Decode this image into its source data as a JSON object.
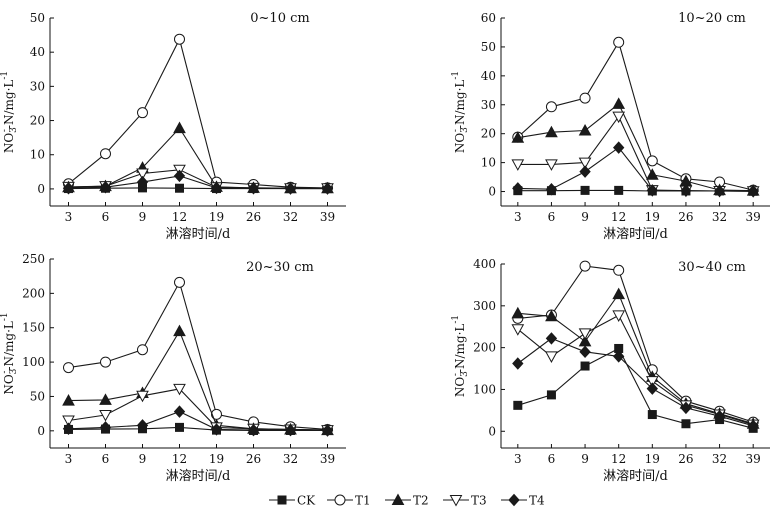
{
  "figure": {
    "legend": [
      {
        "label": "CK",
        "marker": "square-filled"
      },
      {
        "label": "T1",
        "marker": "circle-open"
      },
      {
        "label": "T2",
        "marker": "triangle-up-filled"
      },
      {
        "label": "T3",
        "marker": "triangle-down-open"
      },
      {
        "label": "T4",
        "marker": "diamond-filled"
      }
    ],
    "ylabel_parts": {
      "prefix": "NO",
      "sub": "3",
      "sup": "-",
      "mid": "-N/mg·L",
      "exp": "-1"
    },
    "xlabel": "淋溶时间/d",
    "line_color": "#1a1a1a",
    "legend_position": "bottom-center"
  },
  "chart_data": [
    {
      "type": "line",
      "title": "0~10 cm",
      "xlabel": "淋溶时间/d",
      "ylabel": "NO3--N/mg·L-1",
      "categories": [
        "3",
        "6",
        "9",
        "12",
        "19",
        "26",
        "32",
        "39"
      ],
      "ylim": [
        -5,
        50
      ],
      "yticks": [
        0,
        10,
        20,
        30,
        40,
        50
      ],
      "grid": false,
      "series": [
        {
          "name": "CK",
          "values": [
            0.1,
            0.2,
            0.3,
            0.2,
            0.1,
            0.1,
            0.1,
            0.1
          ]
        },
        {
          "name": "T1",
          "values": [
            1.5,
            10.3,
            22.3,
            43.8,
            2.0,
            1.3,
            0.5,
            0.3
          ]
        },
        {
          "name": "T2",
          "values": [
            0.5,
            0.8,
            6.2,
            17.8,
            0.6,
            0.3,
            0.2,
            0.2
          ]
        },
        {
          "name": "T3",
          "values": [
            0.6,
            0.8,
            4.5,
            5.6,
            0.5,
            0.3,
            0.2,
            0.2
          ]
        },
        {
          "name": "T4",
          "values": [
            0.2,
            0.5,
            2.0,
            3.8,
            0.3,
            0.2,
            0.1,
            0.1
          ]
        }
      ]
    },
    {
      "type": "line",
      "title": "10~20 cm",
      "xlabel": "淋溶时间/d",
      "ylabel": "NO3--N/mg·L-1",
      "categories": [
        "3",
        "6",
        "9",
        "12",
        "19",
        "26",
        "32",
        "39"
      ],
      "ylim": [
        -5,
        60
      ],
      "yticks": [
        0,
        10,
        20,
        30,
        40,
        50,
        60
      ],
      "grid": false,
      "series": [
        {
          "name": "CK",
          "values": [
            0.3,
            0.3,
            0.4,
            0.4,
            0.2,
            0.2,
            0.2,
            0.1
          ]
        },
        {
          "name": "T1",
          "values": [
            18.8,
            29.3,
            32.3,
            51.6,
            10.6,
            4.4,
            3.3,
            0.5
          ]
        },
        {
          "name": "T2",
          "values": [
            18.6,
            20.5,
            21.1,
            30.3,
            5.8,
            3.6,
            0.5,
            0.3
          ]
        },
        {
          "name": "T3",
          "values": [
            9.4,
            9.4,
            10.0,
            25.9,
            0.5,
            0.3,
            0.2,
            0.1
          ]
        },
        {
          "name": "T4",
          "values": [
            1.1,
            0.8,
            6.9,
            15.2,
            0.4,
            0.3,
            0.2,
            0.1
          ]
        }
      ]
    },
    {
      "type": "line",
      "title": "20~30 cm",
      "xlabel": "淋溶时间/d",
      "ylabel": "NO3--N/mg·L-1",
      "categories": [
        "3",
        "6",
        "9",
        "12",
        "19",
        "26",
        "32",
        "39"
      ],
      "ylim": [
        -25,
        250
      ],
      "yticks": [
        0,
        50,
        100,
        150,
        200,
        250
      ],
      "grid": false,
      "series": [
        {
          "name": "CK",
          "values": [
            2.0,
            2.5,
            3.0,
            5.0,
            1.0,
            0.5,
            0.5,
            0.5
          ]
        },
        {
          "name": "T1",
          "values": [
            92,
            100,
            118,
            216,
            24,
            13,
            6,
            2
          ]
        },
        {
          "name": "T2",
          "values": [
            44,
            45,
            55,
            145,
            8,
            3,
            2,
            1
          ]
        },
        {
          "name": "T3",
          "values": [
            15,
            23,
            51,
            61,
            5,
            3,
            2,
            1
          ]
        },
        {
          "name": "T4",
          "values": [
            3,
            5,
            8,
            28,
            2,
            1,
            1,
            0.5
          ]
        }
      ]
    },
    {
      "type": "line",
      "title": "30~40 cm",
      "xlabel": "淋溶时间/d",
      "ylabel": "NO3--N/mg·L-1",
      "categories": [
        "3",
        "6",
        "9",
        "12",
        "19",
        "26",
        "32",
        "39"
      ],
      "ylim": [
        -40,
        400
      ],
      "yticks": [
        0,
        100,
        200,
        300,
        400
      ],
      "grid": false,
      "series": [
        {
          "name": "CK",
          "values": [
            62,
            87,
            156,
            198,
            40,
            18,
            28,
            7
          ]
        },
        {
          "name": "T1",
          "values": [
            270,
            278,
            395,
            385,
            147,
            72,
            48,
            22
          ]
        },
        {
          "name": "T2",
          "values": [
            282,
            275,
            215,
            328,
            130,
            66,
            42,
            18
          ]
        },
        {
          "name": "T3",
          "values": [
            244,
            179,
            234,
            277,
            120,
            62,
            40,
            16
          ]
        },
        {
          "name": "T4",
          "values": [
            162,
            222,
            190,
            179,
            102,
            56,
            36,
            13
          ]
        }
      ]
    }
  ]
}
